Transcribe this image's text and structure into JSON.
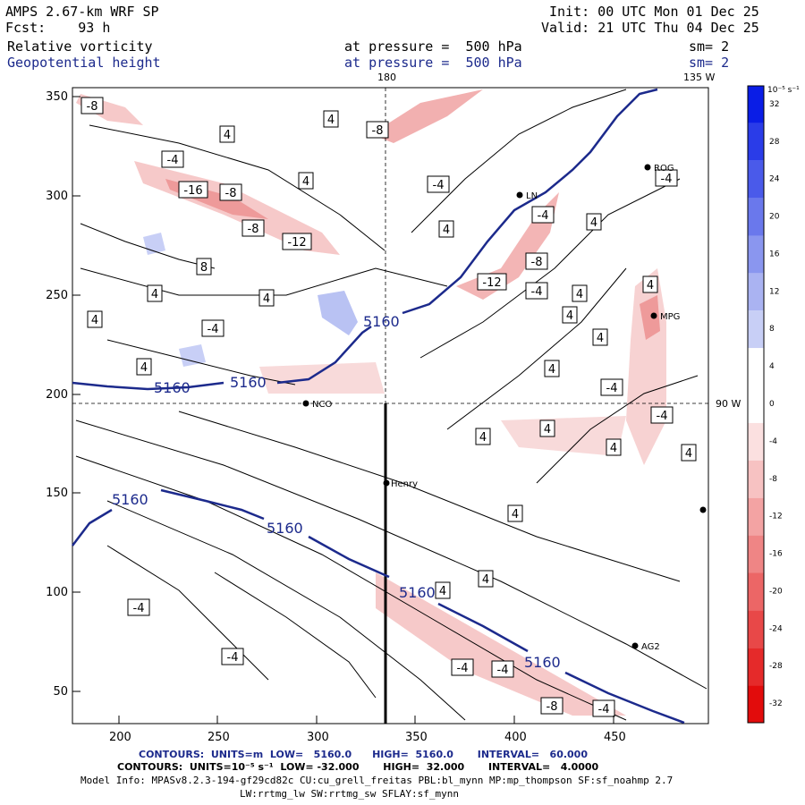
{
  "header": {
    "model": "AMPS 2.67-km WRF SP",
    "fcst": "Fcst:    93 h",
    "init": "Init: 00 UTC Mon 01 Dec 25",
    "valid": "Valid: 21 UTC Thu 04 Dec 25",
    "field1_name": "Relative vorticity",
    "field1_level": "at pressure =  500 hPa",
    "field1_sm": "sm= 2",
    "field2_name": "Geopotential height",
    "field2_level": "at pressure =  500 hPa",
    "field2_sm": "sm= 2"
  },
  "map": {
    "lon_label_180": "180",
    "lon_label_135w": "135 W",
    "lon_label_90w": "90 W",
    "x_ticks": [
      "200",
      "250",
      "300",
      "350",
      "400",
      "450"
    ],
    "y_ticks": [
      "350",
      "300",
      "250",
      "200",
      "150",
      "100",
      "50"
    ],
    "stations": [
      {
        "name": "NCO"
      },
      {
        "name": "Henry"
      },
      {
        "name": "AG2"
      },
      {
        "name": "ROG"
      },
      {
        "name": "MPG"
      },
      {
        "name": "LN"
      }
    ],
    "height_contour_label": "5160",
    "vort_labels": [
      "-8",
      "-16",
      "-8",
      "-8",
      "-12",
      "-4",
      "-4",
      "8",
      "4",
      "4",
      "4",
      "4",
      "-8",
      "-4",
      "-12",
      "-8",
      "-4",
      "4",
      "-4",
      "4",
      "4",
      "4",
      "4",
      "4",
      "4",
      "4",
      "4",
      "4",
      "-4",
      "-4",
      "-4",
      "4",
      "4",
      "4",
      "4",
      "4",
      "4",
      "4",
      "-4",
      "-4",
      "-4",
      "-4",
      "-8",
      "-4"
    ]
  },
  "colorbar": {
    "units": "10⁻⁵ s⁻¹",
    "ticks": [
      "32",
      "28",
      "24",
      "20",
      "16",
      "12",
      "8",
      "4",
      "0",
      "-4",
      "-8",
      "-12",
      "-16",
      "-20",
      "-24",
      "-28",
      "-32"
    ],
    "colors": [
      "#0a1de6",
      "#2a3ce8",
      "#4a5aea",
      "#6a78ec",
      "#8a96ef",
      "#aab3f2",
      "#c8cff6",
      "#ffffff",
      "#ffffff",
      "#fbe0e0",
      "#f7c2c2",
      "#f3a3a3",
      "#ef8585",
      "#ec6666",
      "#e84848",
      "#e52a2a",
      "#e20c0c"
    ]
  },
  "footer": {
    "line1": "CONTOURS:  UNITS=m  LOW=   5160.0      HIGH=  5160.0       INTERVAL=   60.000",
    "line2": "CONTOURS:  UNITS=10⁻⁵ s⁻¹  LOW= -32.000       HIGH=  32.000       INTERVAL=   4.0000",
    "line3": "Model Info: MPASv8.2.3-194-gf29cd82c CU:cu_grell_freitas PBL:bl_mynn MP:mp_thompson SF:sf_noahmp 2.7",
    "line4": "LW:rrtmg_lw SW:rrtmg_sw SFLAY:sf_mynn"
  }
}
